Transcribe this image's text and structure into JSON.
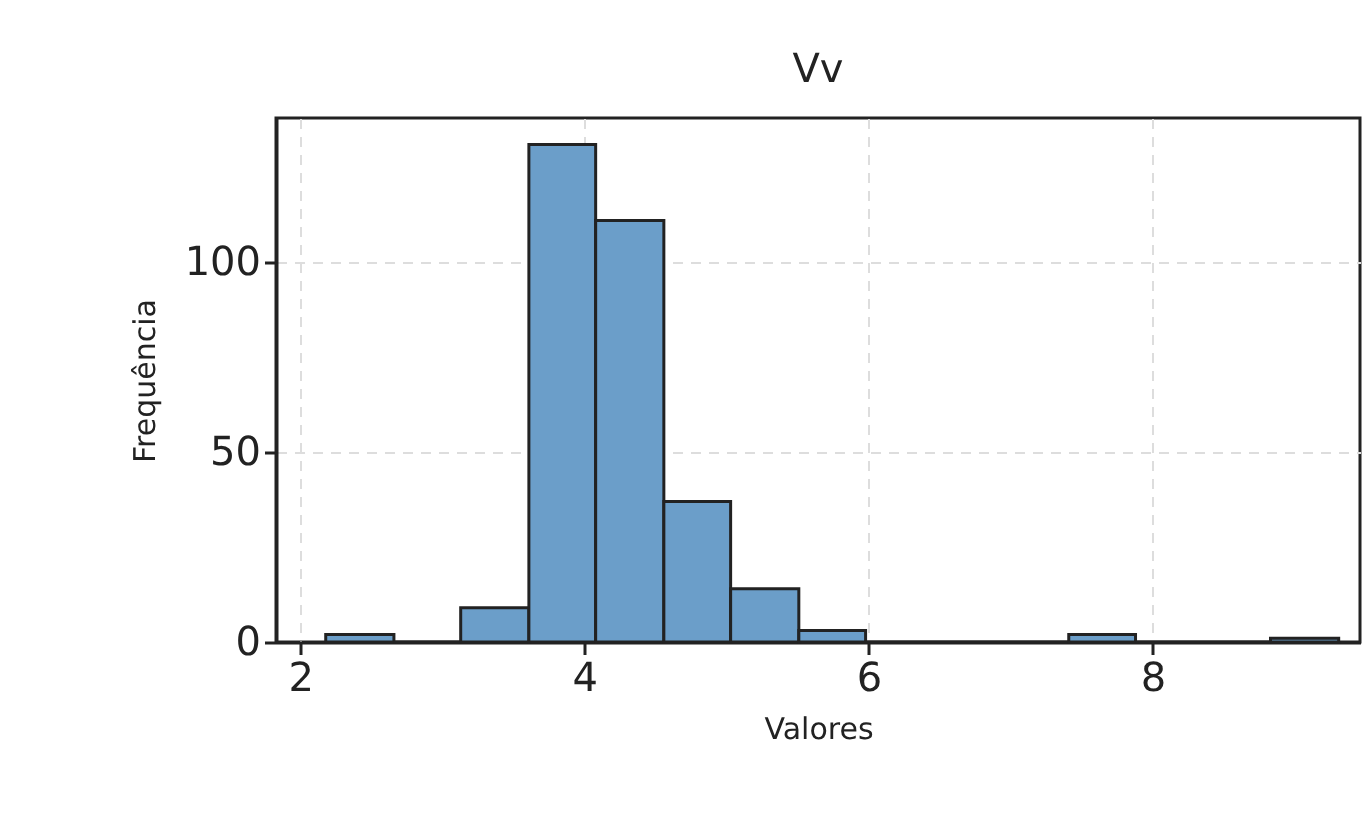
{
  "chart_data": {
    "type": "histogram",
    "title": "Vv",
    "xlabel": "Valores",
    "ylabel": "Frequência",
    "bins": [
      2.18,
      2.66,
      3.13,
      3.61,
      4.08,
      4.56,
      5.03,
      5.51,
      5.98,
      7.41,
      7.88,
      8.83,
      9.31
    ],
    "values": [
      2,
      0,
      9,
      131,
      111,
      37,
      14,
      3,
      0,
      2,
      0,
      1
    ],
    "color": "#6b9ec9",
    "xlim": [
      1.83,
      9.46
    ],
    "xticks": [
      2,
      4,
      6,
      8
    ],
    "ylim": [
      0,
      138
    ],
    "yticks": [
      0,
      50,
      100
    ],
    "grid": true
  }
}
